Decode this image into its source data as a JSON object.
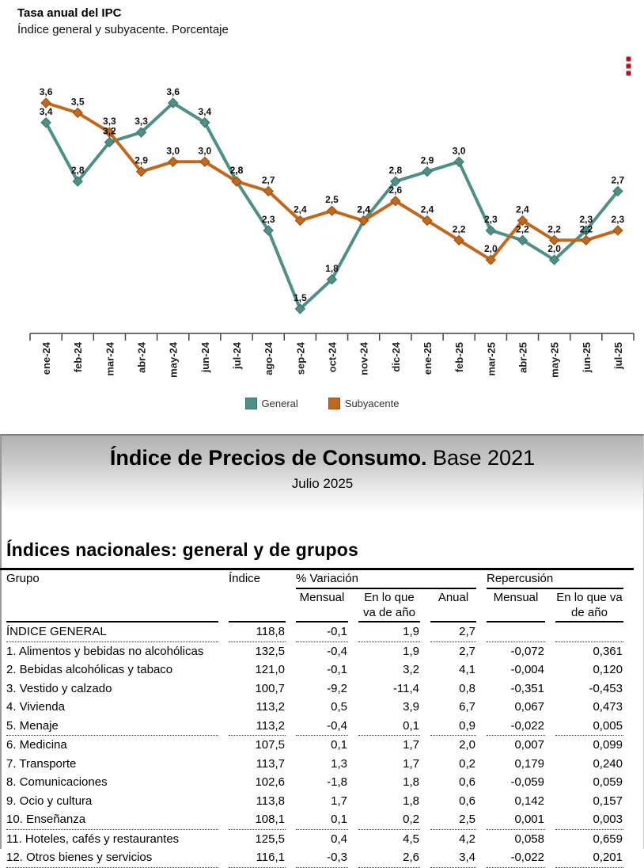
{
  "chart": {
    "title": "Tasa anual del IPC",
    "subtitle": "Índice general y subyacente. Porcentaje",
    "menu_icon": "kebab-menu-icon"
  },
  "chart_data": {
    "type": "line",
    "categories": [
      "ene-24",
      "feb-24",
      "mar-24",
      "abr-24",
      "may-24",
      "jun-24",
      "jul-24",
      "ago-24",
      "sep-24",
      "oct-24",
      "nov-24",
      "dic-24",
      "ene-25",
      "feb-25",
      "mar-25",
      "abr-25",
      "may-25",
      "jun-25",
      "jul-25"
    ],
    "series": [
      {
        "name": "General",
        "color": "#4e9085",
        "stroke": "#3a7168",
        "values": [
          3.4,
          2.8,
          3.2,
          3.3,
          3.6,
          3.4,
          2.8,
          2.3,
          1.5,
          1.8,
          2.4,
          2.8,
          2.9,
          3.0,
          2.3,
          2.2,
          2.0,
          2.3,
          2.7
        ]
      },
      {
        "name": "Subyacente",
        "color": "#c0681c",
        "stroke": "#965012",
        "values": [
          3.6,
          3.5,
          3.3,
          2.9,
          3.0,
          3.0,
          2.8,
          2.7,
          2.4,
          2.5,
          2.4,
          2.6,
          2.4,
          2.2,
          2.0,
          2.4,
          2.2,
          2.2,
          2.3
        ]
      }
    ],
    "ylim": [
      1.2,
      3.9
    ],
    "y_axis_visible": false,
    "grid": false,
    "data_labels": true,
    "decimal_separator": ",",
    "legend_position": "bottom",
    "marker": "diamond"
  },
  "report": {
    "title_bold": "Índice de Precios de Consumo.",
    "title_rest": " Base 2021",
    "subtitle": "Julio 2025",
    "section_title": "Índices nacionales: general y de grupos"
  },
  "table": {
    "headers": {
      "grupo": "Grupo",
      "indice": "Índice",
      "variacion": "% Variación",
      "repercusion": "Repercusión",
      "mensual": "Mensual",
      "en_lo_que_va": "En lo que va de año",
      "anual": "Anual"
    },
    "rows": [
      {
        "grupo": "ÍNDICE GENERAL",
        "indice": "118,8",
        "var_mensual": "-0,1",
        "var_ano": "1,9",
        "var_anual": "2,7",
        "rep_mensual": "",
        "rep_ano": "",
        "divider": true
      },
      {
        "grupo": "1. Alimentos y bebidas no alcohólicas",
        "indice": "132,5",
        "var_mensual": "-0,4",
        "var_ano": "1,9",
        "var_anual": "2,7",
        "rep_mensual": "-0,072",
        "rep_ano": "0,361",
        "divider": false
      },
      {
        "grupo": "2. Bebidas alcohólicas y tabaco",
        "indice": "121,0",
        "var_mensual": "-0,1",
        "var_ano": "3,2",
        "var_anual": "4,1",
        "rep_mensual": "-0,004",
        "rep_ano": "0,120",
        "divider": false
      },
      {
        "grupo": "3. Vestido y calzado",
        "indice": "100,7",
        "var_mensual": "-9,2",
        "var_ano": "-11,4",
        "var_anual": "0,8",
        "rep_mensual": "-0,351",
        "rep_ano": "-0,453",
        "divider": false
      },
      {
        "grupo": "4. Vivienda",
        "indice": "113,2",
        "var_mensual": "0,5",
        "var_ano": "3,9",
        "var_anual": "6,7",
        "rep_mensual": "0,067",
        "rep_ano": "0,473",
        "divider": false
      },
      {
        "grupo": "5. Menaje",
        "indice": "113,2",
        "var_mensual": "-0,4",
        "var_ano": "0,1",
        "var_anual": "0,9",
        "rep_mensual": "-0,022",
        "rep_ano": "0,005",
        "divider": true
      },
      {
        "grupo": "6. Medicina",
        "indice": "107,5",
        "var_mensual": "0,1",
        "var_ano": "1,7",
        "var_anual": "2,0",
        "rep_mensual": "0,007",
        "rep_ano": "0,099",
        "divider": false
      },
      {
        "grupo": "7. Transporte",
        "indice": "113,7",
        "var_mensual": "1,3",
        "var_ano": "1,7",
        "var_anual": "0,2",
        "rep_mensual": "0,179",
        "rep_ano": "0,240",
        "divider": false
      },
      {
        "grupo": "8. Comunicaciones",
        "indice": "102,6",
        "var_mensual": "-1,8",
        "var_ano": "1,8",
        "var_anual": "0,6",
        "rep_mensual": "-0,059",
        "rep_ano": "0,059",
        "divider": false
      },
      {
        "grupo": "9. Ocio y cultura",
        "indice": "113,8",
        "var_mensual": "1,7",
        "var_ano": "1,8",
        "var_anual": "0,6",
        "rep_mensual": "0,142",
        "rep_ano": "0,157",
        "divider": false
      },
      {
        "grupo": "10. Enseñanza",
        "indice": "108,1",
        "var_mensual": "0,1",
        "var_ano": "0,2",
        "var_anual": "2,5",
        "rep_mensual": "0,001",
        "rep_ano": "0,003",
        "divider": true
      },
      {
        "grupo": "11. Hoteles, cafés y restaurantes",
        "indice": "125,5",
        "var_mensual": "0,4",
        "var_ano": "4,5",
        "var_anual": "4,2",
        "rep_mensual": "0,058",
        "rep_ano": "0,659",
        "divider": false
      },
      {
        "grupo": "12. Otros bienes y servicios",
        "indice": "116,1",
        "var_mensual": "-0,3",
        "var_ano": "2,6",
        "var_anual": "3,4",
        "rep_mensual": "-0,022",
        "rep_ano": "0,201",
        "divider": true
      }
    ]
  }
}
